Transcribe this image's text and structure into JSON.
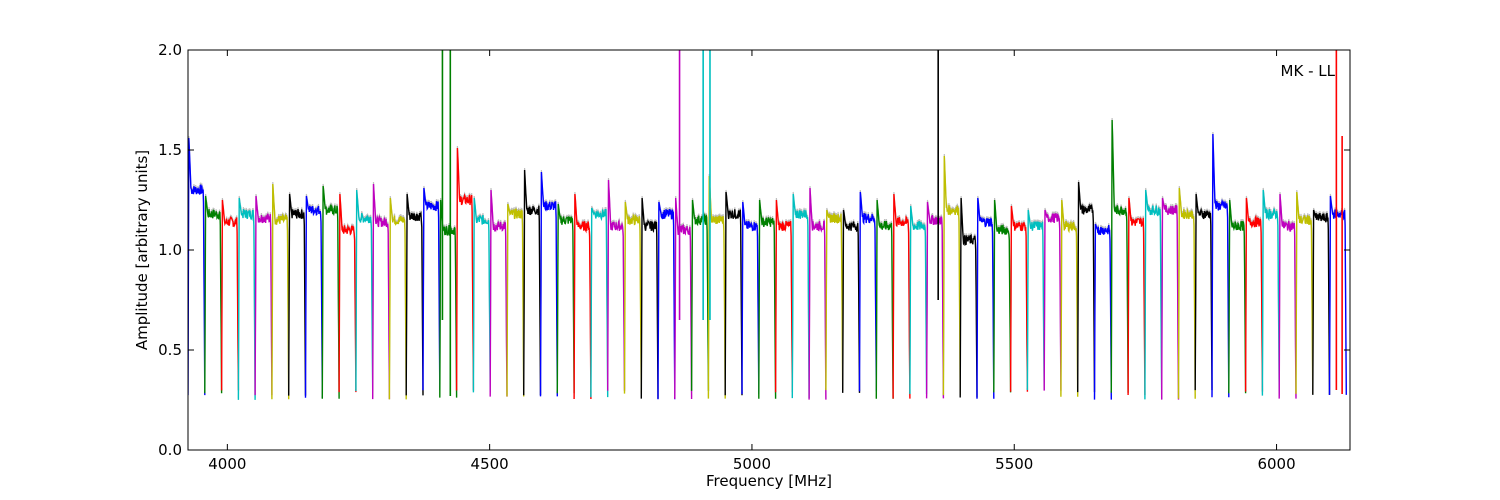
{
  "chart_data": {
    "type": "line",
    "title": "",
    "annotation": "MK - LL",
    "xlabel": "Frequency [MHz]",
    "ylabel": "Amplitude [arbitrary units]",
    "xlim": [
      3925,
      6140
    ],
    "ylim": [
      0.0,
      2.0
    ],
    "xticks": [
      {
        "value": 4000,
        "label": "4000"
      },
      {
        "value": 4500,
        "label": "4500"
      },
      {
        "value": 5000,
        "label": "5000"
      },
      {
        "value": 5500,
        "label": "5500"
      },
      {
        "value": 6000,
        "label": "6000"
      }
    ],
    "yticks": [
      {
        "value": 0.0,
        "label": "0.0"
      },
      {
        "value": 0.5,
        "label": "0.5"
      },
      {
        "value": 1.0,
        "label": "1.0"
      },
      {
        "value": 1.5,
        "label": "1.5"
      },
      {
        "value": 2.0,
        "label": "2.0"
      }
    ],
    "grid": false,
    "legend": "none",
    "band_width_mhz": 32,
    "series_colors": [
      "#0000ff",
      "#008000",
      "#ff0000",
      "#00bfbf",
      "#bf00bf",
      "#bfbf00",
      "#000000"
    ],
    "background_trace_color": "#bfbfbf",
    "channels": [
      {
        "start": 3925,
        "peak": 1.56,
        "level": 1.3,
        "color": "#0000ff"
      },
      {
        "start": 3957,
        "peak": 1.27,
        "level": 1.18,
        "color": "#008000"
      },
      {
        "start": 3989,
        "peak": 1.25,
        "level": 1.14,
        "color": "#ff0000"
      },
      {
        "start": 4021,
        "peak": 1.26,
        "level": 1.18,
        "color": "#00bfbf"
      },
      {
        "start": 4053,
        "peak": 1.27,
        "level": 1.16,
        "color": "#bf00bf"
      },
      {
        "start": 4085,
        "peak": 1.33,
        "level": 1.15,
        "color": "#bfbf00"
      },
      {
        "start": 4117,
        "peak": 1.28,
        "level": 1.18,
        "color": "#000000"
      },
      {
        "start": 4149,
        "peak": 1.27,
        "level": 1.2,
        "color": "#0000ff"
      },
      {
        "start": 4181,
        "peak": 1.32,
        "level": 1.2,
        "color": "#008000"
      },
      {
        "start": 4213,
        "peak": 1.28,
        "level": 1.1,
        "color": "#ff0000"
      },
      {
        "start": 4245,
        "peak": 1.3,
        "level": 1.16,
        "color": "#00bfbf"
      },
      {
        "start": 4277,
        "peak": 1.33,
        "level": 1.14,
        "color": "#bf00bf"
      },
      {
        "start": 4309,
        "peak": 1.26,
        "level": 1.15,
        "color": "#bfbf00"
      },
      {
        "start": 4341,
        "peak": 1.28,
        "level": 1.17,
        "color": "#000000"
      },
      {
        "start": 4373,
        "peak": 1.31,
        "level": 1.22,
        "color": "#0000ff"
      },
      {
        "start": 4405,
        "peak": 1.25,
        "level": 1.1,
        "color": "#008000"
      },
      {
        "start": 4437,
        "peak": 1.51,
        "level": 1.25,
        "color": "#ff0000"
      },
      {
        "start": 4469,
        "peak": 1.26,
        "level": 1.15,
        "color": "#00bfbf"
      },
      {
        "start": 4501,
        "peak": 1.3,
        "level": 1.12,
        "color": "#bf00bf"
      },
      {
        "start": 4533,
        "peak": 1.23,
        "level": 1.18,
        "color": "#bfbf00"
      },
      {
        "start": 4565,
        "peak": 1.4,
        "level": 1.2,
        "color": "#000000"
      },
      {
        "start": 4597,
        "peak": 1.39,
        "level": 1.22,
        "color": "#0000ff"
      },
      {
        "start": 4629,
        "peak": 1.23,
        "level": 1.15,
        "color": "#008000"
      },
      {
        "start": 4661,
        "peak": 1.28,
        "level": 1.12,
        "color": "#ff0000"
      },
      {
        "start": 4693,
        "peak": 1.21,
        "level": 1.18,
        "color": "#00bfbf"
      },
      {
        "start": 4725,
        "peak": 1.35,
        "level": 1.12,
        "color": "#bf00bf"
      },
      {
        "start": 4757,
        "peak": 1.24,
        "level": 1.15,
        "color": "#bfbf00"
      },
      {
        "start": 4789,
        "peak": 1.26,
        "level": 1.12,
        "color": "#000000"
      },
      {
        "start": 4821,
        "peak": 1.24,
        "level": 1.18,
        "color": "#0000ff"
      },
      {
        "start": 4853,
        "peak": 1.26,
        "level": 1.1,
        "color": "#bf00bf"
      },
      {
        "start": 4885,
        "peak": 1.25,
        "level": 1.15,
        "color": "#008000"
      },
      {
        "start": 4917,
        "peak": 1.37,
        "level": 1.15,
        "color": "#bfbf00"
      },
      {
        "start": 4949,
        "peak": 1.29,
        "level": 1.18,
        "color": "#000000"
      },
      {
        "start": 4981,
        "peak": 1.24,
        "level": 1.12,
        "color": "#0000ff"
      },
      {
        "start": 5013,
        "peak": 1.25,
        "level": 1.14,
        "color": "#008000"
      },
      {
        "start": 5045,
        "peak": 1.25,
        "level": 1.12,
        "color": "#ff0000"
      },
      {
        "start": 5077,
        "peak": 1.28,
        "level": 1.18,
        "color": "#00bfbf"
      },
      {
        "start": 5109,
        "peak": 1.31,
        "level": 1.12,
        "color": "#bf00bf"
      },
      {
        "start": 5141,
        "peak": 1.2,
        "level": 1.16,
        "color": "#bfbf00"
      },
      {
        "start": 5173,
        "peak": 1.2,
        "level": 1.12,
        "color": "#000000"
      },
      {
        "start": 5205,
        "peak": 1.29,
        "level": 1.16,
        "color": "#0000ff"
      },
      {
        "start": 5237,
        "peak": 1.25,
        "level": 1.12,
        "color": "#008000"
      },
      {
        "start": 5269,
        "peak": 1.28,
        "level": 1.14,
        "color": "#ff0000"
      },
      {
        "start": 5301,
        "peak": 1.22,
        "level": 1.12,
        "color": "#00bfbf"
      },
      {
        "start": 5333,
        "peak": 1.24,
        "level": 1.15,
        "color": "#bf00bf"
      },
      {
        "start": 5365,
        "peak": 1.47,
        "level": 1.2,
        "color": "#bfbf00"
      },
      {
        "start": 5397,
        "peak": 1.26,
        "level": 1.05,
        "color": "#000000"
      },
      {
        "start": 5429,
        "peak": 1.26,
        "level": 1.14,
        "color": "#0000ff"
      },
      {
        "start": 5461,
        "peak": 1.25,
        "level": 1.1,
        "color": "#008000"
      },
      {
        "start": 5493,
        "peak": 1.22,
        "level": 1.12,
        "color": "#ff0000"
      },
      {
        "start": 5525,
        "peak": 1.2,
        "level": 1.12,
        "color": "#00bfbf"
      },
      {
        "start": 5557,
        "peak": 1.2,
        "level": 1.16,
        "color": "#bf00bf"
      },
      {
        "start": 5589,
        "peak": 1.25,
        "level": 1.12,
        "color": "#bfbf00"
      },
      {
        "start": 5621,
        "peak": 1.34,
        "level": 1.2,
        "color": "#000000"
      },
      {
        "start": 5653,
        "peak": 1.13,
        "level": 1.1,
        "color": "#0000ff"
      },
      {
        "start": 5685,
        "peak": 1.65,
        "level": 1.2,
        "color": "#008000"
      },
      {
        "start": 5717,
        "peak": 1.26,
        "level": 1.14,
        "color": "#ff0000"
      },
      {
        "start": 5749,
        "peak": 1.3,
        "level": 1.2,
        "color": "#00bfbf"
      },
      {
        "start": 5781,
        "peak": 1.26,
        "level": 1.2,
        "color": "#bf00bf"
      },
      {
        "start": 5813,
        "peak": 1.31,
        "level": 1.18,
        "color": "#bfbf00"
      },
      {
        "start": 5845,
        "peak": 1.28,
        "level": 1.18,
        "color": "#000000"
      },
      {
        "start": 5877,
        "peak": 1.58,
        "level": 1.22,
        "color": "#0000ff"
      },
      {
        "start": 5909,
        "peak": 1.25,
        "level": 1.12,
        "color": "#008000"
      },
      {
        "start": 5941,
        "peak": 1.26,
        "level": 1.14,
        "color": "#ff0000"
      },
      {
        "start": 5973,
        "peak": 1.3,
        "level": 1.18,
        "color": "#00bfbf"
      },
      {
        "start": 6005,
        "peak": 1.28,
        "level": 1.12,
        "color": "#bf00bf"
      },
      {
        "start": 6037,
        "peak": 1.29,
        "level": 1.15,
        "color": "#bfbf00"
      },
      {
        "start": 6069,
        "peak": 1.2,
        "level": 1.16,
        "color": "#000000"
      },
      {
        "start": 6101,
        "peak": 1.27,
        "level": 1.18,
        "color": "#0000ff"
      }
    ],
    "spikes": [
      {
        "x": 4410,
        "y_min": 0.65,
        "y_max": 2.0,
        "color": "#008000"
      },
      {
        "x": 4425,
        "y_min": 0.27,
        "y_max": 2.0,
        "color": "#008000"
      },
      {
        "x": 4862,
        "y_min": 0.65,
        "y_max": 2.0,
        "color": "#bf00bf"
      },
      {
        "x": 4907,
        "y_min": 0.65,
        "y_max": 2.0,
        "color": "#00bfbf"
      },
      {
        "x": 4920,
        "y_min": 0.65,
        "y_max": 2.0,
        "color": "#00bfbf"
      },
      {
        "x": 5355,
        "y_min": 0.75,
        "y_max": 2.0,
        "color": "#000000"
      },
      {
        "x": 6114,
        "y_min": 0.3,
        "y_max": 2.0,
        "color": "#ff0000"
      },
      {
        "x": 6125,
        "y_min": 0.28,
        "y_max": 1.57,
        "color": "#ff0000"
      }
    ]
  }
}
